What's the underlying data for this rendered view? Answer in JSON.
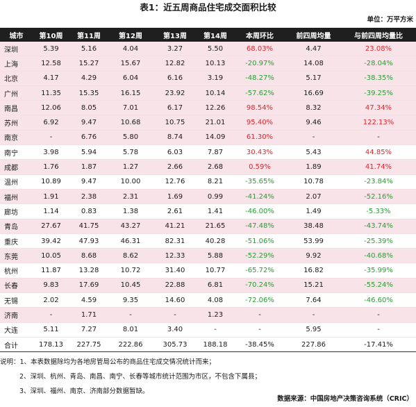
{
  "title": "表1：近五周商品住宅成交面积比较",
  "unit": "单位：万平方米",
  "headers": [
    "城市",
    "第10周",
    "第11周",
    "第12周",
    "第13周",
    "第14周",
    "本周环比",
    "前四周均量",
    "与前四周均量比"
  ],
  "rows": [
    {
      "city": "深圳",
      "w10": "5.39",
      "w11": "5.16",
      "w12": "4.04",
      "w13": "3.27",
      "w14": "5.50",
      "wow": "68.03%",
      "avg4": "4.47",
      "vsavg": "23.08%"
    },
    {
      "city": "上海",
      "w10": "12.58",
      "w11": "15.27",
      "w12": "15.67",
      "w13": "12.82",
      "w14": "10.13",
      "wow": "-20.97%",
      "avg4": "14.08",
      "vsavg": "-28.04%"
    },
    {
      "city": "北京",
      "w10": "4.17",
      "w11": "4.29",
      "w12": "6.04",
      "w13": "6.16",
      "w14": "3.19",
      "wow": "-48.27%",
      "avg4": "5.17",
      "vsavg": "-38.35%"
    },
    {
      "city": "广州",
      "w10": "11.35",
      "w11": "15.35",
      "w12": "16.15",
      "w13": "23.92",
      "w14": "10.14",
      "wow": "-57.62%",
      "avg4": "16.69",
      "vsavg": "-39.25%"
    },
    {
      "city": "南昌",
      "w10": "12.06",
      "w11": "8.05",
      "w12": "7.01",
      "w13": "6.17",
      "w14": "12.26",
      "wow": "98.54%",
      "avg4": "8.32",
      "vsavg": "47.34%"
    },
    {
      "city": "苏州",
      "w10": "6.92",
      "w11": "9.47",
      "w12": "10.68",
      "w13": "10.75",
      "w14": "21.01",
      "wow": "95.40%",
      "avg4": "9.46",
      "vsavg": "122.13%"
    },
    {
      "city": "南京",
      "w10": "-",
      "w11": "6.76",
      "w12": "5.80",
      "w13": "8.74",
      "w14": "14.09",
      "wow": "61.30%",
      "avg4": "-",
      "vsavg": "-"
    },
    {
      "city": "南宁",
      "w10": "3.98",
      "w11": "5.94",
      "w12": "5.78",
      "w13": "6.03",
      "w14": "7.87",
      "wow": "30.43%",
      "avg4": "5.43",
      "vsavg": "44.85%"
    },
    {
      "city": "成都",
      "w10": "1.76",
      "w11": "1.87",
      "w12": "1.27",
      "w13": "2.66",
      "w14": "2.68",
      "wow": "0.59%",
      "avg4": "1.89",
      "vsavg": "41.74%"
    },
    {
      "city": "温州",
      "w10": "10.89",
      "w11": "9.47",
      "w12": "10.00",
      "w13": "12.76",
      "w14": "8.21",
      "wow": "-35.65%",
      "avg4": "10.78",
      "vsavg": "-23.84%"
    },
    {
      "city": "福州",
      "w10": "1.91",
      "w11": "2.38",
      "w12": "2.31",
      "w13": "1.69",
      "w14": "0.99",
      "wow": "-41.24%",
      "avg4": "2.07",
      "vsavg": "-52.16%"
    },
    {
      "city": "廊坊",
      "w10": "1.14",
      "w11": "0.83",
      "w12": "1.38",
      "w13": "2.61",
      "w14": "1.41",
      "wow": "-46.00%",
      "avg4": "1.49",
      "vsavg": "-5.33%"
    },
    {
      "city": "青岛",
      "w10": "27.67",
      "w11": "41.75",
      "w12": "43.27",
      "w13": "41.21",
      "w14": "21.65",
      "wow": "-47.48%",
      "avg4": "38.48",
      "vsavg": "-43.74%"
    },
    {
      "city": "重庆",
      "w10": "39.42",
      "w11": "47.93",
      "w12": "46.31",
      "w13": "82.31",
      "w14": "40.28",
      "wow": "-51.06%",
      "avg4": "53.99",
      "vsavg": "-25.39%"
    },
    {
      "city": "东莞",
      "w10": "10.05",
      "w11": "8.68",
      "w12": "8.62",
      "w13": "12.33",
      "w14": "5.88",
      "wow": "-52.29%",
      "avg4": "9.92",
      "vsavg": "-40.68%"
    },
    {
      "city": "杭州",
      "w10": "11.87",
      "w11": "13.28",
      "w12": "10.72",
      "w13": "31.40",
      "w14": "10.77",
      "wow": "-65.72%",
      "avg4": "16.82",
      "vsavg": "-35.99%"
    },
    {
      "city": "长春",
      "w10": "9.83",
      "w11": "17.69",
      "w12": "10.45",
      "w13": "22.88",
      "w14": "6.81",
      "wow": "-70.24%",
      "avg4": "15.21",
      "vsavg": "-55.24%"
    },
    {
      "city": "无锡",
      "w10": "2.02",
      "w11": "4.59",
      "w12": "9.35",
      "w13": "14.60",
      "w14": "4.08",
      "wow": "-72.06%",
      "avg4": "7.64",
      "vsavg": "-46.60%"
    },
    {
      "city": "济南",
      "w10": "-",
      "w11": "1.71",
      "w12": "-",
      "w13": "-",
      "w14": "1.23",
      "wow": "-",
      "avg4": "-",
      "vsavg": "-"
    },
    {
      "city": "大连",
      "w10": "5.11",
      "w11": "7.27",
      "w12": "8.01",
      "w13": "3.40",
      "w14": "-",
      "wow": "-",
      "avg4": "5.95",
      "vsavg": "-"
    }
  ],
  "total": {
    "city": "合计",
    "w10": "178.13",
    "w11": "227.75",
    "w12": "222.86",
    "w13": "305.73",
    "w14": "188.18",
    "wow": "-38.45%",
    "avg4": "227.86",
    "vsavg": "-17.41%"
  },
  "notes": [
    "说明：1、本表数据除均为各地房管局公布的商品住宅成交情况统计而来；",
    "2、深圳、杭州、青岛、南昌、南宁、长春等城市统计范围为市区，不包含下属县；",
    "3、深圳、福州、南京、济南部分数据暂缺。"
  ],
  "source": "数据来源：中国房地产决策咨询系统（CRIC）",
  "colors": {
    "up": "#e0262c",
    "down": "#2a9d33",
    "pink_row": "#f7e3e8",
    "header_bg": "#1f1f1f"
  }
}
